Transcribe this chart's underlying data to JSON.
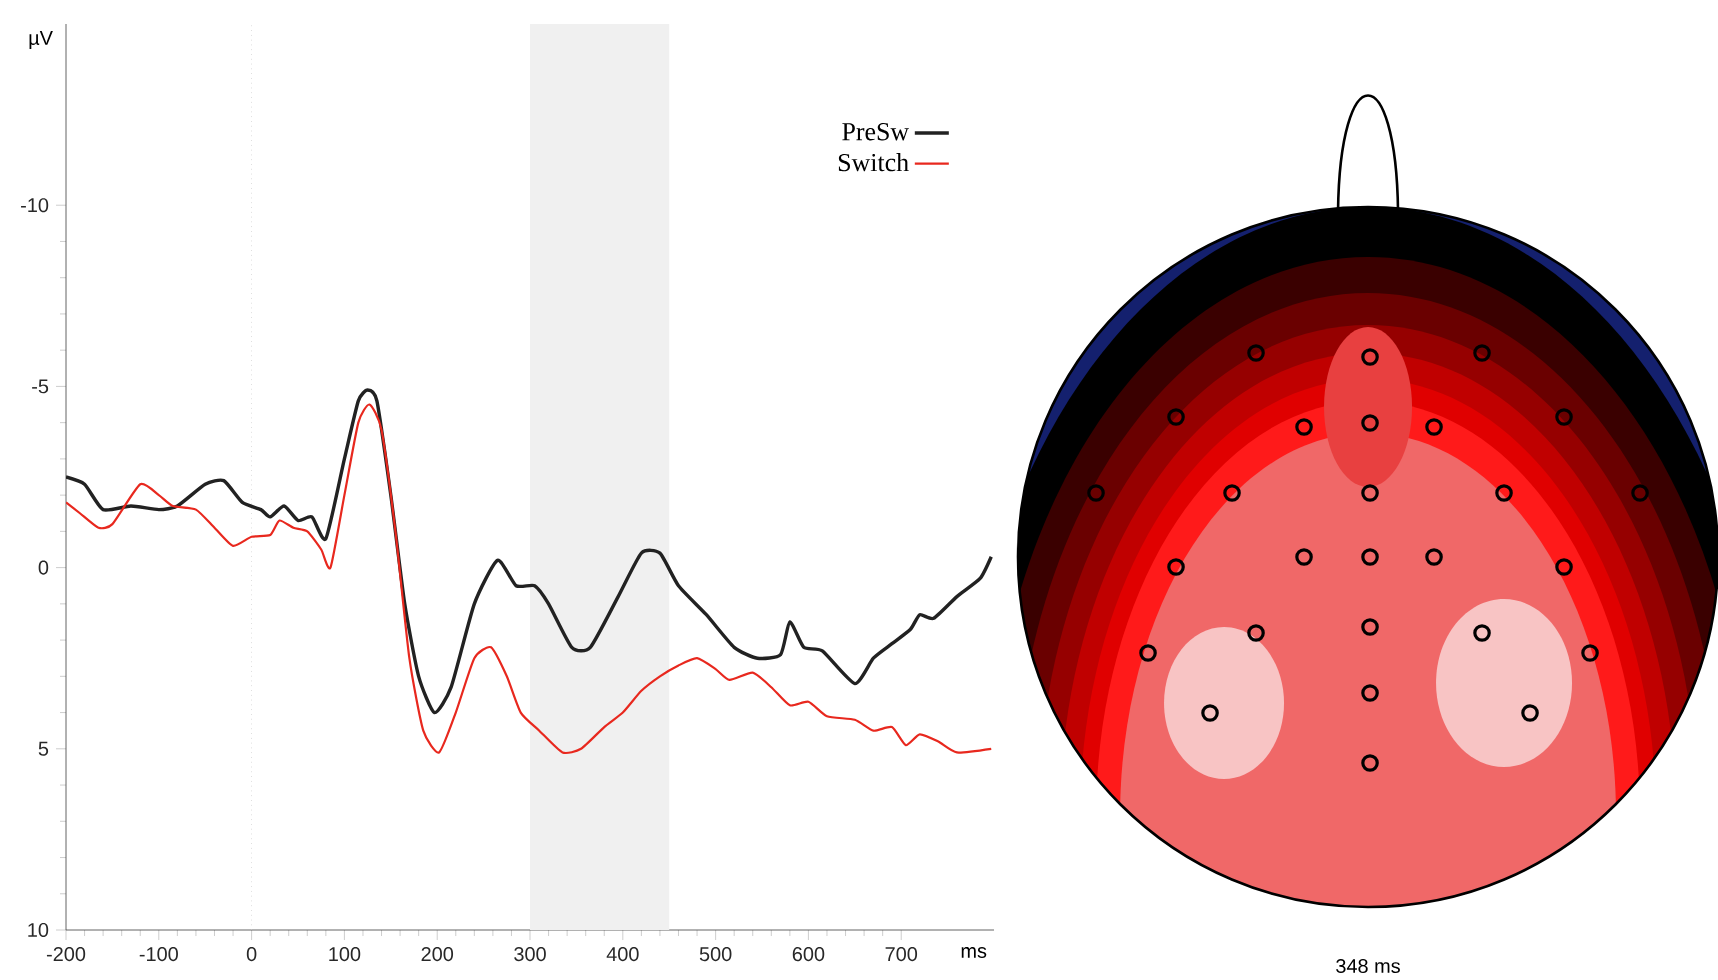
{
  "chart_data": [
    {
      "type": "line",
      "xlabel": "ms",
      "ylabel": "µV",
      "xlim": [
        -200,
        800
      ],
      "ylim": [
        10,
        -15
      ],
      "xticks": [
        -200,
        -100,
        0,
        100,
        200,
        300,
        400,
        500,
        600,
        700
      ],
      "yticks": [
        -10,
        -5,
        0,
        5,
        10
      ],
      "legend": "top right",
      "ref_lines": [
        {
          "axis": "x",
          "value": 0,
          "color": "#c8c8c8",
          "line_style": "dotted"
        }
      ],
      "bands": [
        {
          "axis": "x",
          "from": 300,
          "to": 450,
          "color": "#f0f0f0"
        }
      ],
      "series": [
        {
          "name": "PreSw",
          "color": "#222222",
          "x": [
            -200,
            -180,
            -160,
            -130,
            -100,
            -80,
            -50,
            -30,
            -10,
            10,
            20,
            35,
            50,
            65,
            80,
            100,
            115,
            125,
            135,
            150,
            165,
            180,
            197,
            215,
            240,
            265,
            285,
            305,
            320,
            345,
            365,
            395,
            420,
            440,
            460,
            490,
            520,
            545,
            570,
            580,
            595,
            615,
            650,
            670,
            690,
            710,
            720,
            735,
            760,
            785,
            797
          ],
          "values": [
            -2.5,
            -2.3,
            -1.6,
            -1.7,
            -1.6,
            -1.7,
            -2.3,
            -2.4,
            -1.8,
            -1.6,
            -1.4,
            -1.7,
            -1.3,
            -1.4,
            -0.8,
            -3.0,
            -4.6,
            -4.9,
            -4.6,
            -2.0,
            1.0,
            3.0,
            4.0,
            3.3,
            1.0,
            -0.2,
            0.5,
            0.5,
            1.0,
            2.2,
            2.2,
            0.8,
            -0.4,
            -0.4,
            0.5,
            1.3,
            2.2,
            2.5,
            2.4,
            1.5,
            2.2,
            2.3,
            3.2,
            2.5,
            2.1,
            1.7,
            1.3,
            1.4,
            0.8,
            0.3,
            -0.3
          ]
        },
        {
          "name": "Switch",
          "color": "#e8281e",
          "x": [
            -200,
            -185,
            -165,
            -150,
            -120,
            -100,
            -85,
            -60,
            -40,
            -20,
            0,
            20,
            30,
            45,
            60,
            75,
            85,
            100,
            115,
            127,
            140,
            155,
            170,
            185,
            202,
            220,
            240,
            258,
            275,
            290,
            310,
            335,
            355,
            380,
            400,
            420,
            440,
            460,
            480,
            500,
            515,
            540,
            560,
            580,
            600,
            620,
            650,
            670,
            690,
            705,
            720,
            740,
            760,
            797
          ],
          "values": [
            -1.8,
            -1.5,
            -1.1,
            -1.2,
            -2.3,
            -2.0,
            -1.7,
            -1.6,
            -1.1,
            -0.6,
            -0.85,
            -0.9,
            -1.3,
            -1.1,
            -1.0,
            -0.5,
            0.0,
            -2.0,
            -4.0,
            -4.5,
            -3.8,
            -1.0,
            2.5,
            4.5,
            5.1,
            4.0,
            2.5,
            2.2,
            3.0,
            4.0,
            4.5,
            5.1,
            5.0,
            4.4,
            4.0,
            3.4,
            3.0,
            2.7,
            2.5,
            2.8,
            3.1,
            2.9,
            3.3,
            3.8,
            3.7,
            4.1,
            4.2,
            4.5,
            4.4,
            4.9,
            4.6,
            4.8,
            5.1,
            5.0
          ]
        }
      ]
    },
    {
      "type": "other",
      "annotations": [
        "348 ms"
      ]
    }
  ]
}
